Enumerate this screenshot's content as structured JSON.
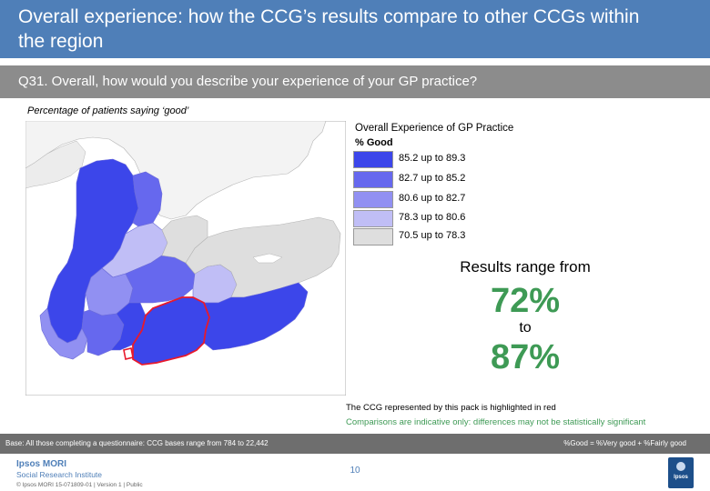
{
  "header": {
    "title": "Overall experience: how the CCG’s results compare to other CCGs within the region"
  },
  "question": {
    "text": "Q31. Overall, how would you describe your experience of your GP practice?"
  },
  "subtitle": "Percentage of patients saying ‘good’",
  "legend": {
    "title": "Overall Experience of GP Practice",
    "subtitle": "% Good",
    "items": [
      {
        "label": "85.2 up to 89.3",
        "color": "#3c46ea"
      },
      {
        "label": "82.7 up to 85.2",
        "color": "#6668ee"
      },
      {
        "label": "80.6 up to 82.7",
        "color": "#9190f2"
      },
      {
        "label": "78.3 up to 80.6",
        "color": "#c0bef6"
      },
      {
        "label": "70.5 up to 78.3",
        "color": "#dedede"
      }
    ]
  },
  "results": {
    "range_label": "Results range from",
    "low": "72%",
    "to": "to",
    "high": "87%"
  },
  "notes": {
    "highlight": "The CCG represented by this pack is highlighted in red",
    "comparison": "Comparisons are indicative only: differences may not be statistically significant"
  },
  "base": {
    "text": "Base: All those completing a questionnaire: CCG bases range from 784 to 22,442",
    "definition": "%Good = %Very good + %Fairly good"
  },
  "footer": {
    "brand": "Ipsos MORI",
    "institute": "Social Research Institute",
    "copyright": "© Ipsos MORI     15-071809-01 | Version 1 | Public",
    "page_number": "10",
    "logo_text": "Ipsos"
  },
  "colors": {
    "header_bar": "#4f7fb8",
    "question_bar": "#8c8c8c",
    "highlight": "#e8192c",
    "results_green": "#3e9a55",
    "sea": "#ffffff",
    "land_other": "#f3f3f3"
  }
}
